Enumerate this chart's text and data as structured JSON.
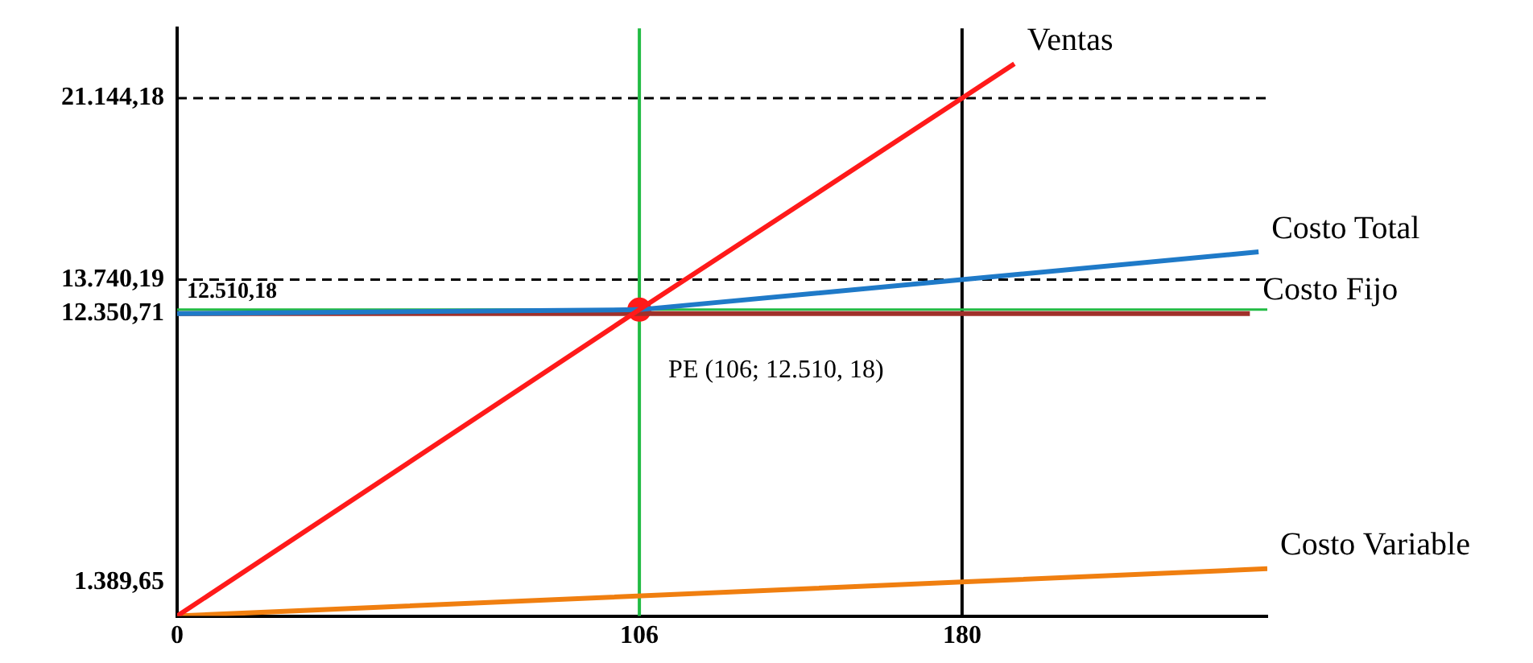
{
  "chart_data": {
    "type": "line",
    "xlim": [
      0,
      250
    ],
    "xticks": [
      0,
      106,
      180
    ],
    "ylim": [
      0,
      24000
    ],
    "yticks": [
      {
        "value": 1389.65,
        "label": "1.389,65"
      },
      {
        "value": 12350.71,
        "label": "12.350,71"
      },
      {
        "value": 13740.19,
        "label": "13.740,19"
      },
      {
        "value": 21144.18,
        "label": "21.144,18"
      }
    ],
    "marker": "none",
    "series": [
      {
        "name": "Ventas",
        "color": "#ff1a1a",
        "x": [
          0,
          106,
          180,
          192
        ],
        "values": [
          0,
          12510.18,
          21144.18,
          22554
        ]
      },
      {
        "name": "Costo Total",
        "color": "#1f7ac8",
        "x": [
          0,
          106,
          180,
          248
        ],
        "values": [
          12350.71,
          12510.18,
          13740.19,
          14870
        ]
      },
      {
        "name": "Costo Fijo",
        "color": "#a0302a",
        "x": [
          0,
          246
        ],
        "values": [
          12350.71,
          12350.71
        ]
      },
      {
        "name": "Costo Variable",
        "color": "#f07f10",
        "x": [
          0,
          180,
          250
        ],
        "values": [
          0,
          1389.65,
          1930
        ]
      },
      {
        "type": "scatter",
        "color": "#ff1a1a",
        "marker": "circle",
        "x": [
          106
        ],
        "values": [
          12510.18
        ]
      }
    ],
    "ref_lines": [
      {
        "axis": "x",
        "value": 106,
        "color": "#22bb44",
        "line_style": "solid"
      },
      {
        "axis": "x",
        "value": 180,
        "color": "#000000",
        "line_style": "solid"
      },
      {
        "axis": "y",
        "value": 21144.18,
        "color": "#000000",
        "line_style": "dashed"
      },
      {
        "axis": "y",
        "value": 13740.19,
        "color": "#000000",
        "line_style": "dashed"
      },
      {
        "axis": "y",
        "value": 12510.18,
        "color": "#22bb44",
        "line_style": "solid",
        "label": "12.510,18"
      }
    ],
    "annotations": [
      {
        "text": "PE (106; 12.510, 18)",
        "x": 106,
        "y": 12510.18
      }
    ]
  }
}
